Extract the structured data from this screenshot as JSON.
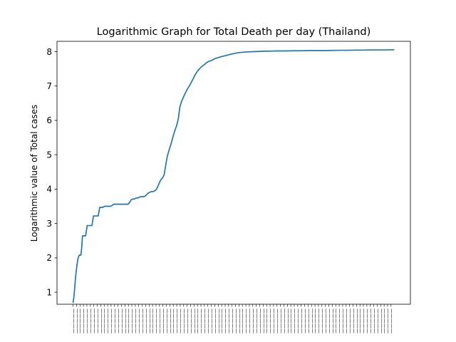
{
  "chart_data": {
    "type": "line",
    "title": "Logarithmic Graph for Total Death per day (Thailand)",
    "xlabel": "",
    "ylabel": "Logarithmic value of Total cases",
    "ylim": [
      0.65,
      8.3
    ],
    "yticks": [
      1,
      2,
      3,
      4,
      5,
      6,
      7,
      8
    ],
    "grid": false,
    "legend": "none",
    "line_color": "#1f77b4",
    "x_tick_label_note": "x tick labels are dense, overlapping date strings that are not legible",
    "series": [
      {
        "x": [
          0,
          1,
          2,
          3,
          4,
          5,
          6,
          7,
          8,
          9,
          10,
          11,
          12,
          13,
          14,
          15,
          16,
          18,
          20,
          22,
          24,
          26,
          28,
          30,
          32,
          34,
          36,
          38,
          40,
          42,
          44,
          46,
          48,
          50,
          52,
          54,
          56,
          58,
          60,
          62,
          64,
          66,
          68,
          70,
          72,
          74,
          76,
          78,
          80,
          82,
          84,
          86,
          88,
          90,
          92,
          94,
          96,
          98,
          100,
          102,
          104,
          106,
          108,
          110,
          112,
          114,
          116,
          118,
          120,
          122,
          124,
          126,
          128,
          130,
          132,
          134,
          136,
          138,
          140,
          143,
          146,
          149,
          152,
          155,
          158,
          161,
          164,
          167,
          170,
          173,
          176,
          180,
          185,
          190,
          195,
          200,
          210,
          220,
          230,
          240,
          250,
          260,
          270,
          280,
          290,
          300,
          310,
          320,
          330,
          340,
          350,
          360,
          370,
          380,
          390,
          400,
          409
        ],
        "values": [
          0.69,
          0.85,
          1.1,
          1.39,
          1.61,
          1.79,
          1.95,
          2.03,
          2.08,
          2.08,
          2.08,
          2.3,
          2.64,
          2.64,
          2.64,
          2.64,
          2.64,
          2.94,
          2.94,
          2.94,
          2.94,
          3.22,
          3.22,
          3.22,
          3.22,
          3.47,
          3.47,
          3.47,
          3.5,
          3.5,
          3.5,
          3.5,
          3.5,
          3.53,
          3.56,
          3.56,
          3.56,
          3.56,
          3.56,
          3.56,
          3.56,
          3.56,
          3.56,
          3.56,
          3.61,
          3.69,
          3.71,
          3.71,
          3.74,
          3.74,
          3.76,
          3.78,
          3.78,
          3.78,
          3.8,
          3.85,
          3.89,
          3.91,
          3.93,
          3.93,
          3.95,
          3.99,
          4.08,
          4.19,
          4.28,
          4.33,
          4.42,
          4.7,
          4.96,
          5.12,
          5.26,
          5.42,
          5.59,
          5.73,
          5.86,
          6.05,
          6.39,
          6.54,
          6.65,
          6.8,
          6.93,
          7.04,
          7.17,
          7.31,
          7.42,
          7.5,
          7.57,
          7.62,
          7.68,
          7.72,
          7.74,
          7.79,
          7.83,
          7.86,
          7.89,
          7.92,
          7.97,
          7.99,
          8.0,
          8.01,
          8.015,
          8.02,
          8.02,
          8.025,
          8.025,
          8.03,
          8.03,
          8.03,
          8.035,
          8.04,
          8.04,
          8.045,
          8.045,
          8.05,
          8.05,
          8.05,
          8.055
        ]
      }
    ]
  }
}
